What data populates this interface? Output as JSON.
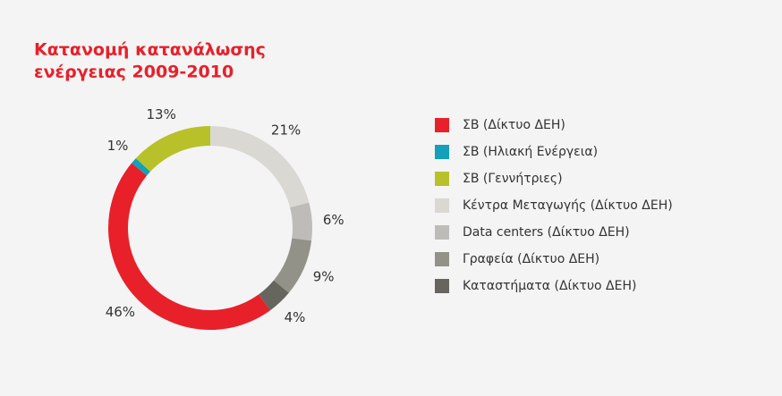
{
  "chart_data": {
    "type": "donut",
    "title": [
      "Κατανομή κατανάλωσης",
      "ενέργειας 2009-2010"
    ],
    "categories": [
      "ΣΒ (Δίκτυο ΔΕΗ)",
      "ΣΒ (Ηλιακή Ενέργεια)",
      "ΣΒ (Γεννήτριες)",
      "Κέντρα Μεταγωγής (Δίκτυο ΔΕΗ)",
      "Data centers (Δίκτυο ΔΕΗ)",
      "Γραφεία (Δίκτυο ΔΕΗ)",
      "Καταστήματα (Δίκτυο ΔΕΗ)"
    ],
    "values": [
      46,
      1,
      13,
      21,
      6,
      9,
      4
    ],
    "value_labels": [
      "46%",
      "1%",
      "13%",
      "21%",
      "6%",
      "9%",
      "4%"
    ],
    "colors": [
      "#e8202a",
      "#14a0b8",
      "#b8c12a",
      "#d9d8d3",
      "#bdbcb8",
      "#929289",
      "#66655e"
    ]
  }
}
